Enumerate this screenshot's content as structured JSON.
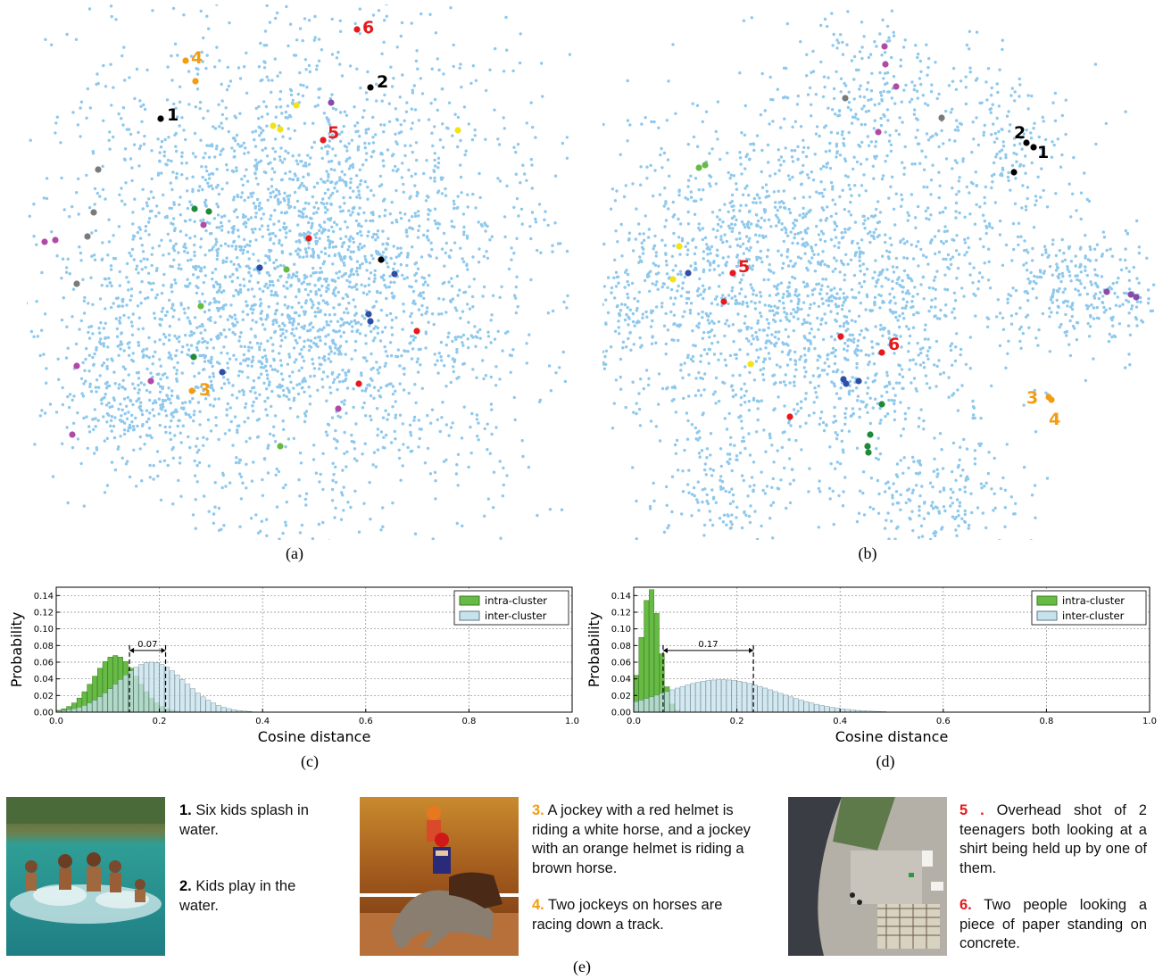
{
  "labels": {
    "a": "(a)",
    "b": "(b)",
    "c": "(c)",
    "d": "(d)",
    "e": "(e)"
  },
  "tsne_a_marks": [
    {
      "num": "1",
      "color": "#000000"
    },
    {
      "num": "2",
      "color": "#000000"
    },
    {
      "num": "3",
      "color": "#f39c12"
    },
    {
      "num": "4",
      "color": "#f39c12"
    },
    {
      "num": "5",
      "color": "#e41a1c"
    },
    {
      "num": "6",
      "color": "#e41a1c"
    }
  ],
  "tsne_b_marks": [
    {
      "num": "1",
      "color": "#000000"
    },
    {
      "num": "2",
      "color": "#000000"
    },
    {
      "num": "3",
      "color": "#f39c12"
    },
    {
      "num": "4",
      "color": "#f39c12"
    },
    {
      "num": "5",
      "color": "#e41a1c"
    },
    {
      "num": "6",
      "color": "#e41a1c"
    }
  ],
  "chart_data": [
    {
      "type": "bar",
      "xlabel": "Cosine distance",
      "ylabel": "Probability",
      "xlim": [
        0.0,
        1.0
      ],
      "ylim": [
        0.0,
        0.15
      ],
      "xticks": [
        "0.0",
        "0.2",
        "0.4",
        "0.6",
        "0.8",
        "1.0"
      ],
      "yticks": [
        "0.00",
        "0.02",
        "0.04",
        "0.06",
        "0.08",
        "0.10",
        "0.12",
        "0.14"
      ],
      "grid": true,
      "legend": "top-right",
      "series": [
        {
          "name": "intra-cluster",
          "color": "#66bb44",
          "mean": 0.115,
          "sd": 0.042,
          "peak": 0.068
        },
        {
          "name": "inter-cluster",
          "color": "#c8e2ec",
          "mean": 0.185,
          "sd": 0.065,
          "peak": 0.06
        }
      ],
      "annotation": {
        "text": "0.07",
        "x1": 0.142,
        "x2": 0.212
      }
    },
    {
      "type": "bar",
      "xlabel": "Cosine distance",
      "ylabel": "Probability",
      "xlim": [
        0.0,
        1.0
      ],
      "ylim": [
        0.0,
        0.15
      ],
      "xticks": [
        "0.0",
        "0.2",
        "0.4",
        "0.6",
        "0.8",
        "1.0"
      ],
      "yticks": [
        "0.00",
        "0.02",
        "0.04",
        "0.06",
        "0.08",
        "0.10",
        "0.12",
        "0.14"
      ],
      "grid": true,
      "legend": "top-right",
      "series": [
        {
          "name": "intra-cluster",
          "color": "#66bb44",
          "mean": 0.033,
          "sd": 0.018,
          "peak": 0.148
        },
        {
          "name": "inter-cluster",
          "color": "#c8e2ec",
          "mean": 0.17,
          "sd": 0.11,
          "peak": 0.039
        }
      ],
      "annotation": {
        "text": "0.17",
        "x1": 0.057,
        "x2": 0.232
      }
    }
  ],
  "captions": {
    "group1": [
      {
        "num": "1.",
        "text": " Six kids splash in water."
      },
      {
        "num": "2.",
        "text": " Kids play in the water."
      }
    ],
    "group2": [
      {
        "num": "3.",
        "text": " A jockey with a red helmet is riding a white horse, and a jockey with an orange helmet is riding a brown horse."
      },
      {
        "num": "4.",
        "text": " Two jockeys on horses are racing down a track."
      }
    ],
    "group3": [
      {
        "num": "5 .",
        "text": " Overhead shot of 2 teenagers both looking at a shirt being held up by one of them."
      },
      {
        "num": "6.",
        "text": " Two people looking a piece of paper standing on concrete."
      }
    ]
  }
}
